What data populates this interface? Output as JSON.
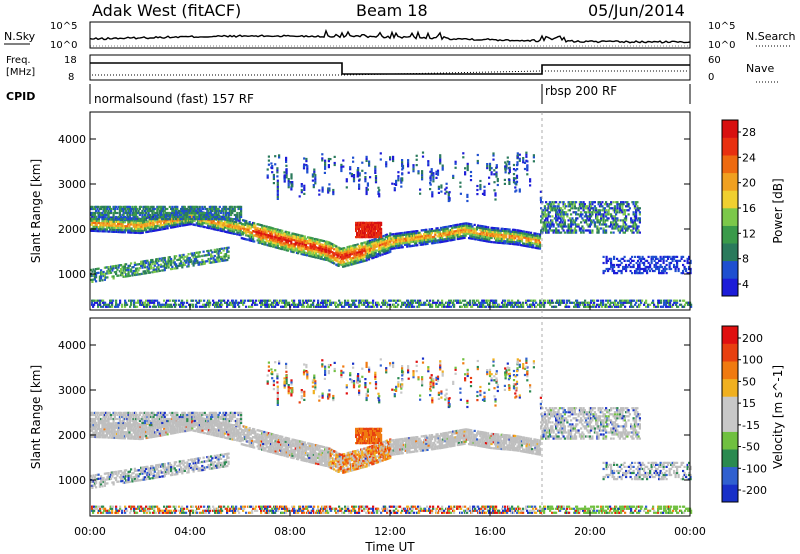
{
  "header": {
    "station": "Adak West (fitACF)",
    "beam": "Beam 18",
    "date": "05/Jun/2014"
  },
  "summary_panels": {
    "nsky_label": "N.Sky",
    "nsearch_label": "N.Search",
    "nsky_ticks": [
      "10^5",
      "10^0"
    ],
    "nsearch_ticks": [
      "10^5",
      "10^0"
    ],
    "freq_label_1": "Freq.",
    "freq_label_2": "[MHz]",
    "freq_ticks": [
      "18",
      "8"
    ],
    "nave_label": "Nave",
    "nave_ticks": [
      "60",
      "0"
    ],
    "cpid_label": "CPID",
    "cpid_modes": [
      "normalsound (fast) 157 RF",
      "rbsp 200 RF"
    ]
  },
  "colors": {
    "power_scale": [
      "#1c1cd8",
      "#1e4fd0",
      "#2a7a5c",
      "#3a9a4a",
      "#7cc84a",
      "#f0d030",
      "#f0a020",
      "#ee6a10",
      "#e83010",
      "#d81010"
    ],
    "velocity_scale": [
      "#1830c8",
      "#3060d0",
      "#2a8a50",
      "#70c040",
      "#c8c8c8",
      "#c8c8c8",
      "#f0b020",
      "#f07a10",
      "#e84010",
      "#e01010"
    ],
    "ground_scatter": "#bfbfbf"
  },
  "chart_data": [
    {
      "type": "heatmap",
      "panel": "power",
      "title": "",
      "xlabel": "",
      "ylabel": "Slant Range [km]",
      "xlim": [
        0,
        24
      ],
      "ylim": [
        200,
        4600
      ],
      "x_ticks": [
        "00:00",
        "04:00",
        "08:00",
        "12:00",
        "16:00",
        "20:00",
        "00:00"
      ],
      "y_ticks": [
        1000,
        2000,
        3000,
        4000
      ],
      "colorbar_label": "Power [dB]",
      "colorbar_ticks": [
        "28",
        "24",
        "20",
        "16",
        "12",
        "8",
        "4"
      ],
      "main_echo_band_km": [
        {
          "t": 0,
          "r": 2100
        },
        {
          "t": 2,
          "r": 2050
        },
        {
          "t": 4,
          "r": 2250
        },
        {
          "t": 6,
          "r": 2000
        },
        {
          "t": 7,
          "r": 1850
        },
        {
          "t": 8,
          "r": 1700
        },
        {
          "t": 9.5,
          "r": 1500
        },
        {
          "t": 10,
          "r": 1350
        },
        {
          "t": 11,
          "r": 1500
        },
        {
          "t": 12,
          "r": 1700
        },
        {
          "t": 14,
          "r": 1850
        },
        {
          "t": 15,
          "r": 1950
        },
        {
          "t": 16,
          "r": 1850
        },
        {
          "t": 17,
          "r": 1800
        },
        {
          "t": 18,
          "r": 1700
        }
      ],
      "late_echo_km": {
        "from": 18,
        "to": 22,
        "range": [
          1900,
          2600
        ]
      }
    },
    {
      "type": "heatmap",
      "panel": "velocity",
      "title": "",
      "xlabel": "Time UT",
      "ylabel": "Slant Range [km]",
      "xlim": [
        0,
        24
      ],
      "ylim": [
        200,
        4600
      ],
      "x_ticks": [
        "00:00",
        "04:00",
        "08:00",
        "12:00",
        "16:00",
        "20:00",
        "00:00"
      ],
      "y_ticks": [
        1000,
        2000,
        3000,
        4000
      ],
      "colorbar_label": "Velocity [m s^-1]",
      "colorbar_ticks": [
        "200",
        "100",
        "50",
        "15",
        "-15",
        "-50",
        "-100",
        "-200"
      ]
    }
  ]
}
